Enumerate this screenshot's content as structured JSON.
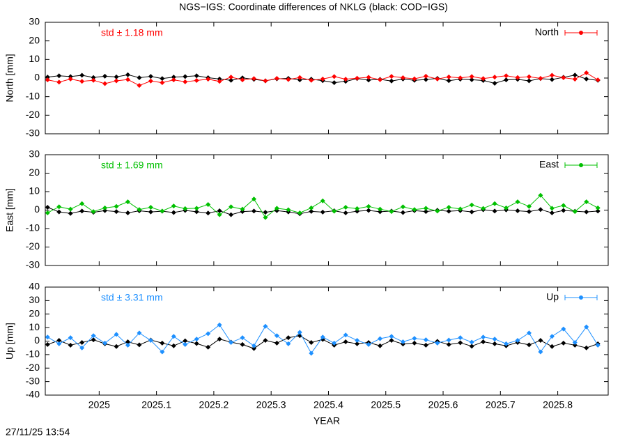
{
  "title": "NGS−IGS: Coordinate differences of NKLG (black: COD−IGS)",
  "timestamp": "27/11/25 13:54",
  "chart_data": [
    {
      "type": "line",
      "ylabel": "North [mm]",
      "annotation": "std ± 1.18 mm",
      "annotation_color": "#ff0000",
      "xlim": [
        2024.906,
        2025.888
      ],
      "xticks": [
        2025,
        2025.1,
        2025.2,
        2025.3,
        2025.4,
        2025.5,
        2025.6,
        2025.7,
        2025.8
      ],
      "ylim": [
        -30,
        30
      ],
      "yticks": [
        -30,
        -20,
        -10,
        0,
        10,
        20,
        30
      ],
      "legend": "top-right",
      "x": [
        2024.91,
        2024.93,
        2024.95,
        2024.97,
        2024.99,
        2025.01,
        2025.03,
        2025.05,
        2025.07,
        2025.09,
        2025.11,
        2025.13,
        2025.15,
        2025.17,
        2025.19,
        2025.21,
        2025.23,
        2025.25,
        2025.27,
        2025.29,
        2025.31,
        2025.33,
        2025.35,
        2025.37,
        2025.39,
        2025.41,
        2025.43,
        2025.45,
        2025.47,
        2025.49,
        2025.51,
        2025.53,
        2025.55,
        2025.57,
        2025.59,
        2025.61,
        2025.63,
        2025.65,
        2025.67,
        2025.69,
        2025.71,
        2025.73,
        2025.75,
        2025.77,
        2025.79,
        2025.81,
        2025.83,
        2025.85,
        2025.87
      ],
      "series": [
        {
          "color": "#000000",
          "values": [
            0.5,
            1.2,
            0.8,
            1.5,
            0.3,
            1.0,
            0.6,
            1.8,
            0.2,
            0.9,
            -0.3,
            0.5,
            0.8,
            1.2,
            0.2,
            -0.5,
            -1.2,
            0.1,
            -0.7,
            -1.5,
            -0.4,
            -0.2,
            -1.0,
            -0.6,
            -1.4,
            -2.5,
            -1.8,
            -0.3,
            -1.1,
            -0.7,
            -1.6,
            -0.5,
            -1.2,
            -0.8,
            -0.2,
            -1.4,
            -0.6,
            -0.9,
            -1.3,
            -2.8,
            -1.0,
            -0.7,
            -1.5,
            -0.3,
            -0.8,
            0.4,
            1.6,
            -0.5,
            -1.2
          ]
        },
        {
          "name": "North",
          "color": "#ff0000",
          "values": [
            -1.0,
            -2.2,
            -0.5,
            -1.8,
            -1.2,
            -3.0,
            -1.5,
            -0.8,
            -4.0,
            -1.6,
            -2.5,
            -1.0,
            -2.0,
            -1.3,
            -0.6,
            -1.8,
            0.5,
            -1.0,
            -0.3,
            -1.5,
            -0.2,
            -0.8,
            0.3,
            -1.2,
            -0.5,
            0.8,
            -0.6,
            -0.1,
            0.4,
            -0.9,
            0.9,
            0.2,
            -0.4,
            1.0,
            -0.5,
            0.6,
            0.1,
            0.8,
            -0.3,
            0.5,
            1.2,
            0.3,
            0.7,
            -0.2,
            1.5,
            0.2,
            -0.6,
            2.8,
            -1.0
          ]
        }
      ]
    },
    {
      "type": "line",
      "ylabel": "East [mm]",
      "annotation": "std ± 1.69 mm",
      "annotation_color": "#00c000",
      "xlim": [
        2024.906,
        2025.888
      ],
      "xticks": [
        2025,
        2025.1,
        2025.2,
        2025.3,
        2025.4,
        2025.5,
        2025.6,
        2025.7,
        2025.8
      ],
      "ylim": [
        -30,
        30
      ],
      "yticks": [
        -30,
        -20,
        -10,
        0,
        10,
        20,
        30
      ],
      "legend": "top-right",
      "x": [
        2024.91,
        2024.93,
        2024.95,
        2024.97,
        2024.99,
        2025.01,
        2025.03,
        2025.05,
        2025.07,
        2025.09,
        2025.11,
        2025.13,
        2025.15,
        2025.17,
        2025.19,
        2025.21,
        2025.23,
        2025.25,
        2025.27,
        2025.29,
        2025.31,
        2025.33,
        2025.35,
        2025.37,
        2025.39,
        2025.41,
        2025.43,
        2025.45,
        2025.47,
        2025.49,
        2025.51,
        2025.53,
        2025.55,
        2025.57,
        2025.59,
        2025.61,
        2025.63,
        2025.65,
        2025.67,
        2025.69,
        2025.71,
        2025.73,
        2025.75,
        2025.77,
        2025.79,
        2025.81,
        2025.83,
        2025.85,
        2025.87
      ],
      "series": [
        {
          "color": "#000000",
          "values": [
            1.5,
            -1.0,
            -1.8,
            -0.5,
            -1.2,
            -0.3,
            -0.8,
            -1.5,
            -0.4,
            -1.0,
            -0.6,
            -1.3,
            -0.2,
            -0.9,
            -1.6,
            -0.4,
            -2.5,
            -0.8,
            -0.5,
            -1.2,
            -0.3,
            -1.0,
            -2.0,
            -0.7,
            -1.1,
            -0.4,
            -1.5,
            -0.6,
            -0.2,
            -0.9,
            -0.5,
            -1.3,
            -0.3,
            -0.8,
            -0.1,
            -0.6,
            -0.3,
            -1.0,
            0.2,
            -0.5,
            0.1,
            -0.4,
            -0.8,
            0.3,
            -1.5,
            -0.2,
            -0.6,
            -1.0,
            -0.5
          ]
        },
        {
          "name": "East",
          "color": "#00c000",
          "values": [
            -1.5,
            1.8,
            0.5,
            3.5,
            -0.8,
            1.2,
            2.0,
            4.5,
            0.3,
            1.5,
            -0.5,
            2.2,
            0.8,
            1.0,
            3.0,
            -2.5,
            1.8,
            0.5,
            6.0,
            -4.0,
            1.0,
            0.2,
            -1.5,
            1.2,
            5.0,
            -0.6,
            1.5,
            0.8,
            2.0,
            0.5,
            -0.8,
            1.8,
            0.3,
            1.0,
            -0.5,
            1.5,
            0.6,
            2.8,
            0.9,
            3.5,
            1.2,
            4.5,
            2.0,
            8.0,
            1.0,
            2.5,
            -0.8,
            4.5,
            1.2
          ]
        }
      ]
    },
    {
      "type": "line",
      "ylabel": "Up [mm]",
      "xlabel": "YEAR",
      "annotation": "std ± 3.31 mm",
      "annotation_color": "#1e90ff",
      "xlim": [
        2024.906,
        2025.888
      ],
      "xticks": [
        2025,
        2025.1,
        2025.2,
        2025.3,
        2025.4,
        2025.5,
        2025.6,
        2025.7,
        2025.8
      ],
      "ylim": [
        -40,
        40
      ],
      "yticks": [
        -40,
        -30,
        -20,
        -10,
        0,
        10,
        20,
        30,
        40
      ],
      "legend": "top-right",
      "x": [
        2024.91,
        2024.93,
        2024.95,
        2024.97,
        2024.99,
        2025.01,
        2025.03,
        2025.05,
        2025.07,
        2025.09,
        2025.11,
        2025.13,
        2025.15,
        2025.17,
        2025.19,
        2025.21,
        2025.23,
        2025.25,
        2025.27,
        2025.29,
        2025.31,
        2025.33,
        2025.35,
        2025.37,
        2025.39,
        2025.41,
        2025.43,
        2025.45,
        2025.47,
        2025.49,
        2025.51,
        2025.53,
        2025.55,
        2025.57,
        2025.59,
        2025.61,
        2025.63,
        2025.65,
        2025.67,
        2025.69,
        2025.71,
        2025.73,
        2025.75,
        2025.77,
        2025.79,
        2025.81,
        2025.83,
        2025.85,
        2025.87
      ],
      "series": [
        {
          "color": "#000000",
          "values": [
            -2.5,
            0.5,
            -3.0,
            -1.0,
            1.0,
            -2.0,
            -4.0,
            -0.5,
            -2.8,
            0.8,
            -1.5,
            -3.5,
            0.2,
            -1.8,
            -4.5,
            1.5,
            -0.8,
            -2.5,
            -5.5,
            0.5,
            -1.5,
            2.5,
            4.0,
            -1.0,
            1.2,
            -3.0,
            -0.5,
            -2.0,
            -1.0,
            -3.5,
            0.5,
            -2.2,
            -1.5,
            -3.0,
            -0.2,
            -2.5,
            -1.2,
            -3.8,
            -0.5,
            -2.0,
            -3.5,
            -1.0,
            -2.8,
            0.5,
            -4.0,
            -1.5,
            -3.0,
            -5.0,
            -2.0
          ]
        },
        {
          "name": "Up",
          "color": "#1e90ff",
          "values": [
            3.0,
            -2.0,
            2.5,
            -5.0,
            4.0,
            -1.5,
            5.0,
            -3.0,
            6.0,
            0.5,
            -8.0,
            3.5,
            -2.5,
            1.5,
            5.5,
            12.0,
            -1.0,
            2.5,
            -3.5,
            11.0,
            4.0,
            -2.0,
            6.5,
            -9.0,
            3.0,
            -1.5,
            4.5,
            0.5,
            -2.5,
            1.8,
            3.5,
            -0.5,
            2.0,
            1.0,
            -1.5,
            0.8,
            2.5,
            -0.8,
            3.0,
            1.5,
            -2.0,
            0.5,
            6.0,
            -8.0,
            3.5,
            9.0,
            -1.0,
            10.5,
            -3.0
          ]
        }
      ]
    }
  ]
}
